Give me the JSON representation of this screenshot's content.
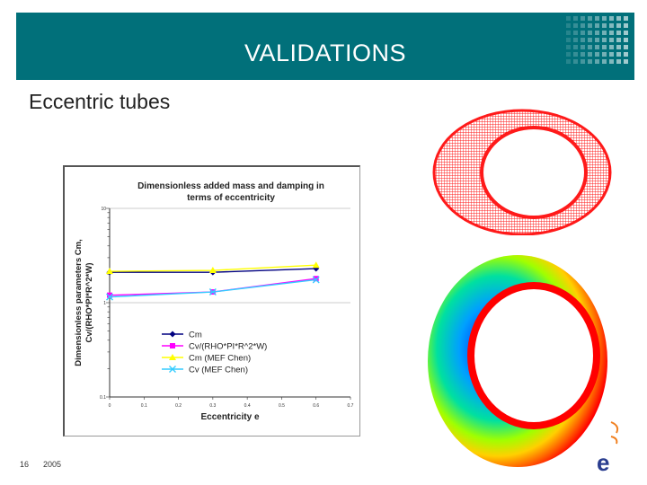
{
  "header": {
    "title": "VALIDATIONS"
  },
  "subtitle": "Eccentric tubes",
  "footer": {
    "slide_number": "16",
    "year": "2005"
  },
  "logo": {
    "text": "e"
  },
  "colors": {
    "header_bg": "#01707a",
    "mesh_red": "#ff1a1a",
    "header_text": "#ffffff"
  },
  "chart_data": {
    "type": "line",
    "title_line1": "Dimensionless added mass and damping in",
    "title_line2": "terms of eccentricity",
    "xlabel": "Eccentricity e",
    "ylabel_line1": "Dimensionless parameters Cm,",
    "ylabel_line2": "Cv/(RHO*PI*R^2*W)",
    "y_scale": "log",
    "ylim": [
      0.1,
      10
    ],
    "xlim": [
      0,
      0.7
    ],
    "xticks": [
      "0",
      "0.1",
      "0.2",
      "0.3",
      "0.4",
      "0.5",
      "0.6",
      "0.7"
    ],
    "yticks": [
      "0.1",
      "1",
      "10"
    ],
    "series": [
      {
        "name": "Cm",
        "color": "#000080",
        "marker": "diamond",
        "x": [
          0,
          0.3,
          0.6
        ],
        "y": [
          2.1,
          2.1,
          2.3
        ]
      },
      {
        "name": "Cv/(RHO*PI*R^2*W)",
        "color": "#ff00ff",
        "marker": "square",
        "x": [
          0,
          0.3,
          0.6
        ],
        "y": [
          1.2,
          1.3,
          1.8
        ]
      },
      {
        "name": "Cm (MEF Chen)",
        "color": "#ffff00",
        "marker": "triangle",
        "x": [
          0,
          0.3,
          0.6
        ],
        "y": [
          2.15,
          2.2,
          2.5
        ]
      },
      {
        "name": "Cv (MEF Chen)",
        "color": "#33ccff",
        "marker": "x",
        "x": [
          0,
          0.3,
          0.6
        ],
        "y": [
          1.15,
          1.3,
          1.75
        ]
      }
    ]
  }
}
